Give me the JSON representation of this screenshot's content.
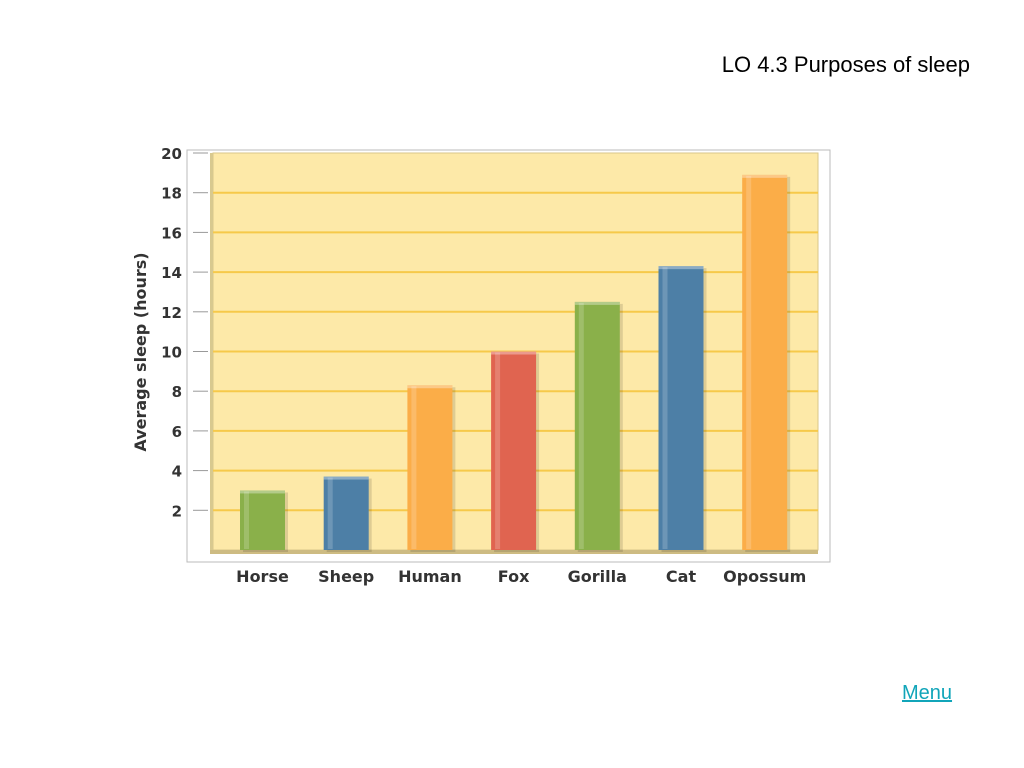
{
  "slide": {
    "title": "LO 4.3 Purposes of sleep",
    "menu_label": "Menu"
  },
  "colors": {
    "plot_bg": "#fde9a8",
    "grid": "#f6c94a",
    "link": "#11a5b9"
  },
  "chart_data": {
    "type": "bar",
    "categories": [
      "Horse",
      "Sheep",
      "Human",
      "Fox",
      "Gorilla",
      "Cat",
      "Opossum"
    ],
    "values": [
      3.0,
      3.7,
      8.3,
      10.0,
      12.5,
      14.3,
      18.9
    ],
    "bar_colors": [
      "#8ab04a",
      "#4d7fa6",
      "#fbad48",
      "#e06450",
      "#8ab04a",
      "#4d7fa6",
      "#fbad48"
    ],
    "ylabel": "Average sleep (hours)",
    "xlabel": "",
    "ylim": [
      0,
      20
    ],
    "yticks": [
      2,
      4,
      6,
      8,
      10,
      12,
      14,
      16,
      18,
      20
    ],
    "grid": true
  }
}
